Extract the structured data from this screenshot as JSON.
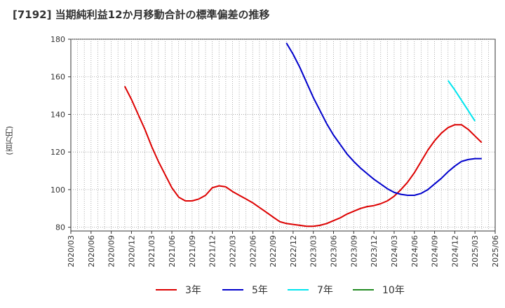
{
  "chart_data": {
    "type": "line",
    "title": "[7192]  当期純利益12か月移動合計の標準偏差の推移",
    "ylabel": "(百万円)",
    "xlabel": "",
    "ylim": [
      78,
      180
    ],
    "yticks": [
      80,
      100,
      120,
      140,
      160,
      180
    ],
    "x_range": [
      "2020/03",
      "2025/06"
    ],
    "x_tick_labels": [
      "2020/03",
      "2020/06",
      "2020/09",
      "2020/12",
      "2021/03",
      "2021/06",
      "2021/09",
      "2021/12",
      "2022/03",
      "2022/06",
      "2022/09",
      "2022/12",
      "2023/03",
      "2023/06",
      "2023/09",
      "2023/12",
      "2024/03",
      "2024/06",
      "2024/09",
      "2024/12",
      "2025/03",
      "2025/06"
    ],
    "grid": true,
    "legend_position": "bottom",
    "series": [
      {
        "name": "3年",
        "color": "#dd0000",
        "points": [
          [
            "2020/11",
            155
          ],
          [
            "2020/12",
            148
          ],
          [
            "2021/01",
            140
          ],
          [
            "2021/02",
            132
          ],
          [
            "2021/03",
            123
          ],
          [
            "2021/04",
            115
          ],
          [
            "2021/05",
            108
          ],
          [
            "2021/06",
            101
          ],
          [
            "2021/07",
            96
          ],
          [
            "2021/08",
            94
          ],
          [
            "2021/09",
            94
          ],
          [
            "2021/10",
            95
          ],
          [
            "2021/11",
            97
          ],
          [
            "2021/12",
            101
          ],
          [
            "2022/01",
            102
          ],
          [
            "2022/02",
            101.5
          ],
          [
            "2022/03",
            99
          ],
          [
            "2022/04",
            97
          ],
          [
            "2022/05",
            95
          ],
          [
            "2022/06",
            93
          ],
          [
            "2022/07",
            90.5
          ],
          [
            "2022/08",
            88
          ],
          [
            "2022/09",
            85.5
          ],
          [
            "2022/10",
            83
          ],
          [
            "2022/11",
            82
          ],
          [
            "2022/12",
            81.5
          ],
          [
            "2023/01",
            81
          ],
          [
            "2023/02",
            80.5
          ],
          [
            "2023/03",
            80.5
          ],
          [
            "2023/04",
            81
          ],
          [
            "2023/05",
            82
          ],
          [
            "2023/06",
            83.5
          ],
          [
            "2023/07",
            85
          ],
          [
            "2023/08",
            87
          ],
          [
            "2023/09",
            88.5
          ],
          [
            "2023/10",
            90
          ],
          [
            "2023/11",
            91
          ],
          [
            "2023/12",
            91.5
          ],
          [
            "2024/01",
            92.5
          ],
          [
            "2024/02",
            94
          ],
          [
            "2024/03",
            96.5
          ],
          [
            "2024/04",
            100
          ],
          [
            "2024/05",
            104
          ],
          [
            "2024/06",
            109
          ],
          [
            "2024/07",
            115
          ],
          [
            "2024/08",
            121
          ],
          [
            "2024/09",
            126
          ],
          [
            "2024/10",
            130
          ],
          [
            "2024/11",
            133
          ],
          [
            "2024/12",
            134.5
          ],
          [
            "2025/01",
            134.5
          ],
          [
            "2025/02",
            132
          ],
          [
            "2025/03",
            128.5
          ],
          [
            "2025/04",
            125
          ]
        ]
      },
      {
        "name": "5年",
        "color": "#0000cc",
        "points": [
          [
            "2022/11",
            178
          ],
          [
            "2022/12",
            172
          ],
          [
            "2023/01",
            165
          ],
          [
            "2023/02",
            157
          ],
          [
            "2023/03",
            149
          ],
          [
            "2023/04",
            142
          ],
          [
            "2023/05",
            135
          ],
          [
            "2023/06",
            129
          ],
          [
            "2023/07",
            124
          ],
          [
            "2023/08",
            119
          ],
          [
            "2023/09",
            115
          ],
          [
            "2023/10",
            111.5
          ],
          [
            "2023/11",
            108.5
          ],
          [
            "2023/12",
            105.5
          ],
          [
            "2024/01",
            103
          ],
          [
            "2024/02",
            100.5
          ],
          [
            "2024/03",
            98.5
          ],
          [
            "2024/04",
            97.5
          ],
          [
            "2024/05",
            97
          ],
          [
            "2024/06",
            97
          ],
          [
            "2024/07",
            98
          ],
          [
            "2024/08",
            100
          ],
          [
            "2024/09",
            103
          ],
          [
            "2024/10",
            106
          ],
          [
            "2024/11",
            109.5
          ],
          [
            "2024/12",
            112.5
          ],
          [
            "2025/01",
            115
          ],
          [
            "2025/02",
            116
          ],
          [
            "2025/03",
            116.5
          ],
          [
            "2025/04",
            116.5
          ]
        ]
      },
      {
        "name": "7年",
        "color": "#00e5ee",
        "points": [
          [
            "2024/11",
            158
          ],
          [
            "2024/12",
            153
          ],
          [
            "2025/01",
            147.5
          ],
          [
            "2025/02",
            142
          ],
          [
            "2025/03",
            136.5
          ]
        ]
      },
      {
        "name": "10年",
        "color": "#228b22",
        "points": []
      }
    ]
  }
}
